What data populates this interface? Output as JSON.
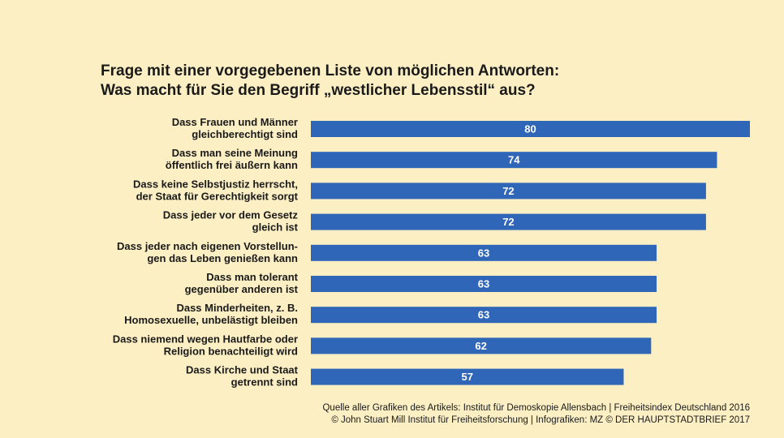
{
  "title": {
    "line1": "Frage mit einer vorgegebenen Liste von möglichen Antworten:",
    "line2": "Was macht für Sie den Begriff „westlicher Lebensstil“ aus?"
  },
  "source": {
    "line1": "Quelle aller Grafiken des Artikels: Institut für Demoskopie Allensbach | Freiheitsindex Deutschland 2016",
    "line2": "© John Stuart Mill Institut für Freiheitsforschung | Infografiken: MZ © DER HAUPTSTADTBRIEF 2017"
  },
  "colors": {
    "background": "#fcefc4",
    "bar": "#2f66b8",
    "bar_label": "#ffffff",
    "text": "#1a1a1a"
  },
  "chart_data": {
    "type": "bar",
    "orientation": "horizontal",
    "categories": [
      [
        "Dass Frauen und Männer",
        "gleichberechtigt sind"
      ],
      [
        "Dass man seine Meinung",
        "öffentlich frei äußern kann"
      ],
      [
        "Dass keine Selbstjustiz herrscht,",
        "der Staat für Gerechtigkeit sorgt"
      ],
      [
        "Dass jeder vor dem Gesetz",
        "gleich ist"
      ],
      [
        "Dass jeder nach eigenen Vorstellun-",
        "gen das Leben genießen kann"
      ],
      [
        "Dass man tolerant",
        "gegenüber anderen ist"
      ],
      [
        "Dass Minderheiten, z. B.",
        "Homosexuelle, unbelästigt bleiben"
      ],
      [
        "Dass niemend wegen Hautfarbe oder",
        "Religion benachteiligt wird"
      ],
      [
        "Dass Kirche und Staat",
        "getrennt sind"
      ]
    ],
    "values": [
      80,
      74,
      72,
      72,
      63,
      63,
      63,
      62,
      57
    ],
    "xlim": [
      0,
      80
    ],
    "grid": false,
    "data_labels": true
  }
}
